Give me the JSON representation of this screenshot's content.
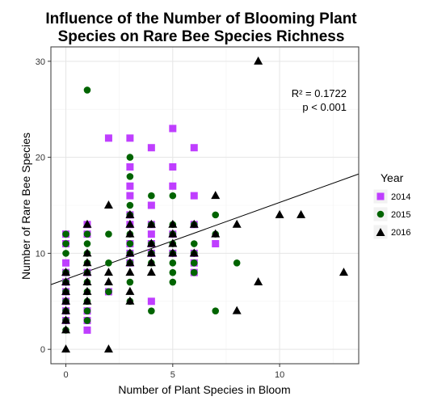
{
  "chart_data": {
    "type": "scatter",
    "title": [
      "Influence of the Number of Blooming Plant",
      "Species on Rare Bee Species Richness"
    ],
    "xlabel": "Number of Plant Species in Bloom",
    "ylabel": "Number of Rare Bee Species",
    "xlim": [
      -0.7,
      13.7
    ],
    "ylim": [
      -1.5,
      31.5
    ],
    "x_ticks": [
      0,
      5,
      10
    ],
    "y_ticks": [
      0,
      10,
      20,
      30
    ],
    "grid": true,
    "legend": {
      "title": "Year",
      "position": "right"
    },
    "annotation": [
      "R² = 0.1722",
      "p < 0.001"
    ],
    "trend_line": {
      "intercept": 7.3,
      "slope": 0.8
    },
    "series": [
      {
        "name": "2014",
        "color": "#bf3eff",
        "marker": "square",
        "points": [
          [
            0,
            12
          ],
          [
            0,
            11
          ],
          [
            0,
            9
          ],
          [
            0,
            8
          ],
          [
            0,
            7
          ],
          [
            0,
            6
          ],
          [
            0,
            5
          ],
          [
            0,
            4
          ],
          [
            0,
            3
          ],
          [
            1,
            13
          ],
          [
            1,
            12
          ],
          [
            1,
            8
          ],
          [
            1,
            4
          ],
          [
            1,
            3
          ],
          [
            1,
            2
          ],
          [
            2,
            22
          ],
          [
            2,
            6
          ],
          [
            3,
            22
          ],
          [
            3,
            19
          ],
          [
            3,
            17
          ],
          [
            3,
            16
          ],
          [
            3,
            14
          ],
          [
            3,
            13
          ],
          [
            3,
            11
          ],
          [
            3,
            10
          ],
          [
            3,
            9
          ],
          [
            4,
            21
          ],
          [
            4,
            15
          ],
          [
            4,
            13
          ],
          [
            4,
            12
          ],
          [
            4,
            11
          ],
          [
            4,
            10
          ],
          [
            4,
            5
          ],
          [
            5,
            23
          ],
          [
            5,
            19
          ],
          [
            5,
            17
          ],
          [
            5,
            12
          ],
          [
            5,
            10
          ],
          [
            6,
            21
          ],
          [
            6,
            16
          ],
          [
            6,
            13
          ],
          [
            6,
            10
          ],
          [
            6,
            9
          ],
          [
            6,
            8
          ],
          [
            7,
            11
          ]
        ]
      },
      {
        "name": "2015",
        "color": "#006400",
        "marker": "circle",
        "points": [
          [
            0,
            12
          ],
          [
            0,
            11
          ],
          [
            0,
            10
          ],
          [
            0,
            8
          ],
          [
            0,
            7
          ],
          [
            0,
            6
          ],
          [
            0,
            5
          ],
          [
            0,
            4
          ],
          [
            0,
            3
          ],
          [
            0,
            2
          ],
          [
            1,
            27
          ],
          [
            1,
            12
          ],
          [
            1,
            11
          ],
          [
            1,
            10
          ],
          [
            1,
            9
          ],
          [
            1,
            8
          ],
          [
            1,
            7
          ],
          [
            1,
            6
          ],
          [
            1,
            5
          ],
          [
            1,
            4
          ],
          [
            1,
            3
          ],
          [
            2,
            12
          ],
          [
            2,
            9
          ],
          [
            2,
            6
          ],
          [
            3,
            20
          ],
          [
            3,
            18
          ],
          [
            3,
            15
          ],
          [
            3,
            14
          ],
          [
            3,
            12
          ],
          [
            3,
            11
          ],
          [
            3,
            10
          ],
          [
            3,
            9
          ],
          [
            3,
            7
          ],
          [
            3,
            5
          ],
          [
            4,
            16
          ],
          [
            4,
            13
          ],
          [
            4,
            11
          ],
          [
            4,
            10
          ],
          [
            4,
            9
          ],
          [
            4,
            4
          ],
          [
            5,
            16
          ],
          [
            5,
            13
          ],
          [
            5,
            12
          ],
          [
            5,
            11
          ],
          [
            5,
            10
          ],
          [
            5,
            9
          ],
          [
            5,
            8
          ],
          [
            5,
            7
          ],
          [
            6,
            13
          ],
          [
            6,
            11
          ],
          [
            6,
            10
          ],
          [
            6,
            9
          ],
          [
            6,
            8
          ],
          [
            7,
            14
          ],
          [
            7,
            12
          ],
          [
            7,
            4
          ],
          [
            8,
            9
          ]
        ]
      },
      {
        "name": "2016",
        "color": "#000000",
        "marker": "triangle",
        "points": [
          [
            0,
            8
          ],
          [
            0,
            7
          ],
          [
            0,
            6
          ],
          [
            0,
            5
          ],
          [
            0,
            4
          ],
          [
            0,
            3
          ],
          [
            0,
            2
          ],
          [
            0,
            0
          ],
          [
            1,
            13
          ],
          [
            1,
            10
          ],
          [
            1,
            9
          ],
          [
            1,
            8
          ],
          [
            1,
            7
          ],
          [
            1,
            6
          ],
          [
            1,
            5
          ],
          [
            2,
            15
          ],
          [
            2,
            8
          ],
          [
            2,
            7
          ],
          [
            2,
            0
          ],
          [
            3,
            14
          ],
          [
            3,
            13
          ],
          [
            3,
            12
          ],
          [
            3,
            10
          ],
          [
            3,
            9
          ],
          [
            3,
            8
          ],
          [
            3,
            6
          ],
          [
            3,
            5
          ],
          [
            4,
            13
          ],
          [
            4,
            11
          ],
          [
            4,
            10
          ],
          [
            4,
            9
          ],
          [
            4,
            8
          ],
          [
            5,
            13
          ],
          [
            5,
            12
          ],
          [
            5,
            11
          ],
          [
            5,
            10
          ],
          [
            6,
            13
          ],
          [
            6,
            10
          ],
          [
            7,
            16
          ],
          [
            7,
            12
          ],
          [
            8,
            13
          ],
          [
            8,
            4
          ],
          [
            9,
            30
          ],
          [
            9,
            7
          ],
          [
            10,
            14
          ],
          [
            11,
            14
          ],
          [
            13,
            8
          ]
        ]
      }
    ]
  }
}
